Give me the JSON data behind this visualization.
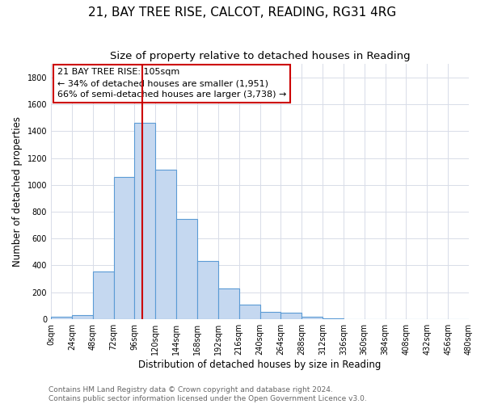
{
  "title": "21, BAY TREE RISE, CALCOT, READING, RG31 4RG",
  "subtitle": "Size of property relative to detached houses in Reading",
  "xlabel": "Distribution of detached houses by size in Reading",
  "ylabel": "Number of detached properties",
  "bar_color": "#c5d8f0",
  "bar_edge_color": "#5b9bd5",
  "reference_line_x": 105,
  "reference_line_color": "#cc0000",
  "bin_width": 24,
  "bin_starts": [
    0,
    24,
    48,
    72,
    96,
    120,
    144,
    168,
    192,
    216,
    240,
    264,
    288,
    312,
    336,
    360,
    384,
    408,
    432,
    456
  ],
  "counts": [
    15,
    30,
    355,
    1060,
    1465,
    1115,
    745,
    435,
    225,
    110,
    55,
    50,
    20,
    5,
    2,
    2,
    2,
    1,
    1,
    1
  ],
  "xlim": [
    0,
    480
  ],
  "ylim": [
    0,
    1900
  ],
  "yticks": [
    0,
    200,
    400,
    600,
    800,
    1000,
    1200,
    1400,
    1600,
    1800
  ],
  "xtick_labels": [
    "0sqm",
    "24sqm",
    "48sqm",
    "72sqm",
    "96sqm",
    "120sqm",
    "144sqm",
    "168sqm",
    "192sqm",
    "216sqm",
    "240sqm",
    "264sqm",
    "288sqm",
    "312sqm",
    "336sqm",
    "360sqm",
    "384sqm",
    "408sqm",
    "432sqm",
    "456sqm",
    "480sqm"
  ],
  "annotation_line1": "21 BAY TREE RISE: 105sqm",
  "annotation_line2": "← 34% of detached houses are smaller (1,951)",
  "annotation_line3": "66% of semi-detached houses are larger (3,738) →",
  "footer_line1": "Contains HM Land Registry data © Crown copyright and database right 2024.",
  "footer_line2": "Contains public sector information licensed under the Open Government Licence v3.0.",
  "background_color": "#ffffff",
  "grid_color": "#d8dce8",
  "title_fontsize": 11,
  "subtitle_fontsize": 9.5,
  "axis_label_fontsize": 8.5,
  "tick_fontsize": 7,
  "annotation_fontsize": 8,
  "footer_fontsize": 6.5
}
